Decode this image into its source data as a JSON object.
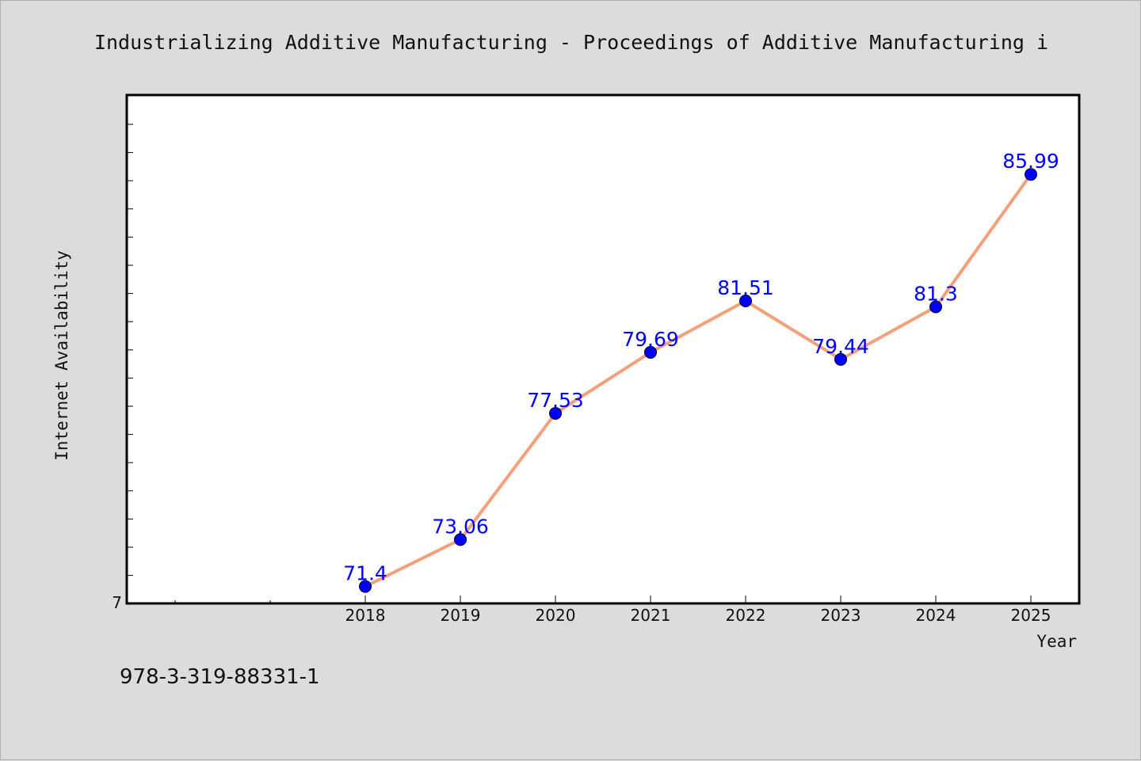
{
  "title": "Industrializing Additive Manufacturing - Proceedings of Additive Manufacturing i",
  "footer": "978-3-319-88331-1",
  "colors": {
    "background": "#dcdcdc",
    "plot_background": "#ffffff",
    "line": "#f4a07a",
    "marker": "#0000ff",
    "data_label": "#0000ff"
  },
  "chart_data": {
    "type": "line",
    "title": "Industrializing Additive Manufacturing - Proceedings of Additive Manufacturing i",
    "xlabel": "Year",
    "ylabel": "Internet Availability",
    "categories": [
      "2018",
      "2019",
      "2020",
      "2021",
      "2022",
      "2023",
      "2024",
      "2025"
    ],
    "series": [
      {
        "values": [
          71.4,
          73.06,
          77.53,
          79.69,
          81.51,
          79.44,
          81.3,
          85.99
        ]
      }
    ],
    "data_labels": [
      "71.4",
      "73.06",
      "77.53",
      "79.69",
      "81.51",
      "79.44",
      "81.3",
      "85.99"
    ],
    "y_tick_label": "7",
    "ylim": [
      70.8,
      88.8
    ],
    "grid": false,
    "legend": "none"
  }
}
